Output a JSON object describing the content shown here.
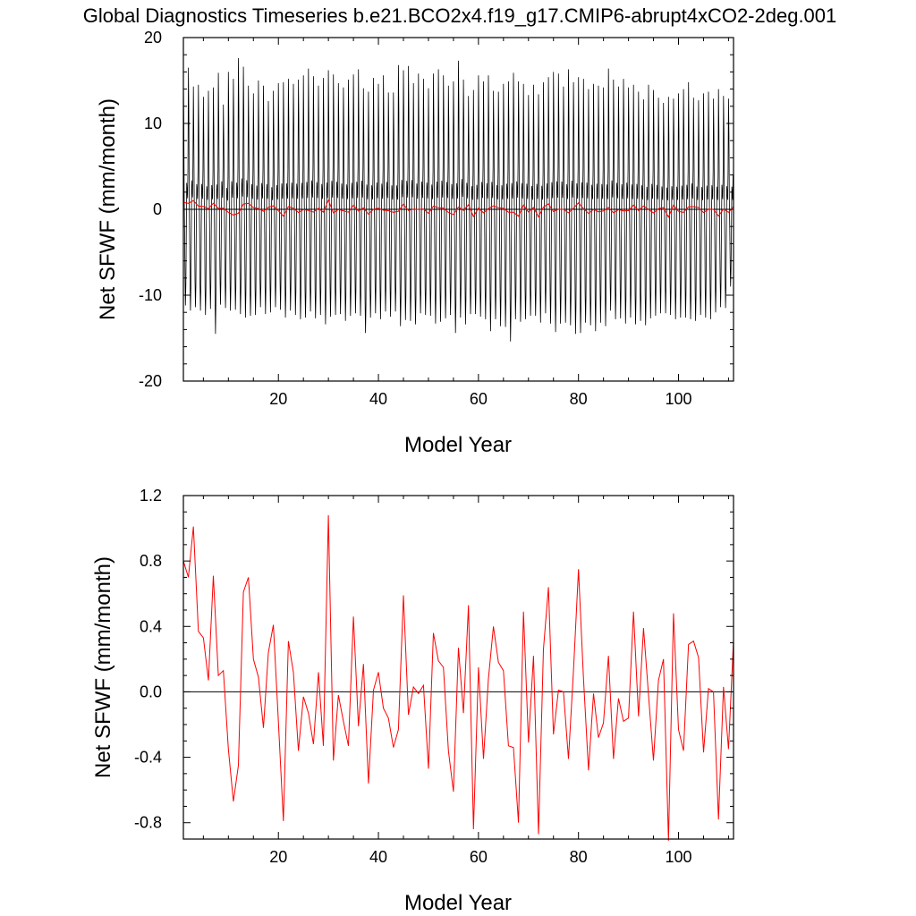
{
  "title": "Global Diagnostics Timeseries b.e21.BCO2x4.f19_g17.CMIP6-abrupt4xCO2-2deg.001",
  "colors": {
    "monthly": "#000000",
    "annual": "#ff0000",
    "axis": "#000000"
  },
  "chart_data": [
    {
      "type": "line",
      "ylabel": "Net SFWF (mm/month)",
      "xlabel": "Model Year",
      "xlim": [
        1,
        111
      ],
      "ylim": [
        -20,
        20
      ],
      "xticks": [
        "20",
        "40",
        "60",
        "80",
        "100"
      ],
      "yticks": [
        "-20",
        "-10",
        "0",
        "10",
        "20"
      ],
      "reference_line_y": 0,
      "series": [
        {
          "kind": "monthly",
          "x_start": 1,
          "x_step": 0.0833333,
          "seasonal_cycle": [
            14.2,
            9.5,
            1.5,
            -3.0,
            -8.5,
            -11.6,
            -9.0,
            -2.2,
            2.9,
            2.0,
            1.2,
            4.5
          ],
          "annual_peak_max": [
            15.1,
            16.5,
            14.3,
            14.5,
            13.1,
            13.8,
            14.2,
            15.9,
            12.2,
            16.0,
            15.2,
            17.6,
            16.6,
            14.4,
            13.5,
            15.0,
            14.4,
            12.6,
            13.8,
            14.7,
            14.8,
            15.2,
            14.6,
            15.1,
            15.6,
            16.4,
            15.5,
            14.4,
            15.3,
            16.2,
            15.7,
            14.7,
            14.2,
            15.1,
            15.7,
            16.3,
            14.1,
            13.7,
            15.3,
            14.6,
            15.6,
            13.6,
            13.6,
            16.8,
            16.2,
            16.7,
            14.7,
            15.8,
            15.2,
            14.1,
            15.8,
            16.3,
            15.6,
            14.4,
            14.9,
            17.3,
            15.1,
            13.2,
            13.9,
            15.6,
            14.9,
            15.6,
            13.8,
            13.7,
            14.6,
            14.9,
            15.9,
            14.9,
            14.6,
            13.3,
            14.5,
            13.4,
            14.8,
            15.4,
            16.0,
            15.8,
            14.3,
            16.3,
            14.8,
            15.4,
            15.2,
            14.0,
            14.6,
            14.4,
            14.2,
            16.4,
            15.1,
            14.3,
            15.2,
            14.2,
            14.5,
            13.7,
            12.8,
            14.5,
            13.9,
            13.0,
            12.4,
            13.1,
            12.9,
            13.5,
            14.0,
            14.8,
            13.0,
            12.7,
            13.5,
            13.7,
            12.9,
            14.0,
            13.2,
            12.9
          ],
          "annual_trough_min": [
            -11.2,
            -11.8,
            -11.4,
            -11.8,
            -12.3,
            -11.6,
            -14.5,
            -11.1,
            -11.5,
            -11.8,
            -11.7,
            -12.2,
            -12.6,
            -12.4,
            -12.3,
            -11.4,
            -12.2,
            -12.0,
            -11.4,
            -11.7,
            -12.6,
            -11.8,
            -12.3,
            -12.8,
            -12.6,
            -11.9,
            -12.7,
            -12.3,
            -13.4,
            -12.5,
            -12.3,
            -12.2,
            -13.0,
            -12.4,
            -12.1,
            -12.4,
            -14.4,
            -12.6,
            -12.1,
            -12.8,
            -11.9,
            -12.5,
            -11.9,
            -13.6,
            -12.9,
            -13.0,
            -13.4,
            -12.1,
            -12.3,
            -12.4,
            -13.3,
            -13.1,
            -12.7,
            -12.3,
            -14.4,
            -12.6,
            -13.4,
            -12.2,
            -12.2,
            -12.5,
            -12.8,
            -14.2,
            -12.8,
            -13.6,
            -13.7,
            -15.4,
            -12.8,
            -13.1,
            -12.8,
            -12.4,
            -12.4,
            -13.2,
            -12.1,
            -13.3,
            -14.3,
            -13.3,
            -13.2,
            -13.5,
            -14.5,
            -14.4,
            -13.2,
            -13.5,
            -14.2,
            -13.2,
            -13.6,
            -11.8,
            -12.8,
            -12.7,
            -13.3,
            -12.6,
            -13.4,
            -13.0,
            -13.5,
            -12.7,
            -12.4,
            -12.1,
            -12.1,
            -12.3,
            -12.8,
            -12.6,
            -12.6,
            -12.8,
            -13.0,
            -12.3,
            -12.6,
            -12.8,
            -12.0,
            -11.4,
            -11.5,
            -9.0
          ]
        },
        {
          "kind": "annual",
          "x_start": 1,
          "x_step": 1,
          "values": [
            0.8,
            0.7,
            1.01,
            0.37,
            0.33,
            0.07,
            0.71,
            0.1,
            0.13,
            -0.35,
            -0.67,
            -0.45,
            0.61,
            0.7,
            0.2,
            0.09,
            -0.22,
            0.24,
            0.41,
            -0.18,
            -0.79,
            0.31,
            0.12,
            -0.36,
            -0.03,
            -0.13,
            -0.32,
            0.12,
            -0.33,
            1.08,
            -0.42,
            -0.02,
            -0.18,
            -0.33,
            0.46,
            -0.21,
            0.17,
            -0.56,
            0.01,
            0.12,
            -0.1,
            -0.16,
            -0.34,
            -0.23,
            0.59,
            -0.14,
            0.03,
            -0.01,
            0.04,
            -0.47,
            0.36,
            0.19,
            0.15,
            -0.36,
            -0.61,
            0.27,
            -0.13,
            0.53,
            -0.84,
            0.15,
            -0.41,
            0.08,
            0.4,
            0.18,
            0.13,
            -0.33,
            -0.34,
            -0.8,
            0.49,
            -0.31,
            0.22,
            -0.87,
            0.26,
            0.64,
            -0.26,
            0.01,
            0.0,
            -0.41,
            0.13,
            0.75,
            0.08,
            -0.48,
            -0.01,
            -0.28,
            -0.19,
            0.22,
            -0.41,
            -0.04,
            -0.18,
            -0.16,
            0.49,
            -0.15,
            0.39,
            -0.02,
            -0.42,
            0.07,
            0.2,
            -0.91,
            0.48,
            -0.23,
            -0.36,
            0.29,
            0.31,
            0.21,
            -0.37,
            0.02,
            0.0,
            -0.78,
            0.03,
            -0.35,
            0.32
          ]
        }
      ]
    },
    {
      "type": "line",
      "ylabel": "Net SFWF (mm/month)",
      "xlabel": "Model Year",
      "xlim": [
        1,
        111
      ],
      "ylim": [
        -0.9,
        1.2
      ],
      "xticks": [
        "20",
        "40",
        "60",
        "80",
        "100"
      ],
      "yticks": [
        "-0.8",
        "-0.4",
        "0.0",
        "0.4",
        "0.8",
        "1.2"
      ],
      "reference_line_y": 0,
      "series": [
        {
          "kind": "annual",
          "x_start": 1,
          "x_step": 1,
          "values_ref": "same as top annual series"
        }
      ]
    }
  ]
}
